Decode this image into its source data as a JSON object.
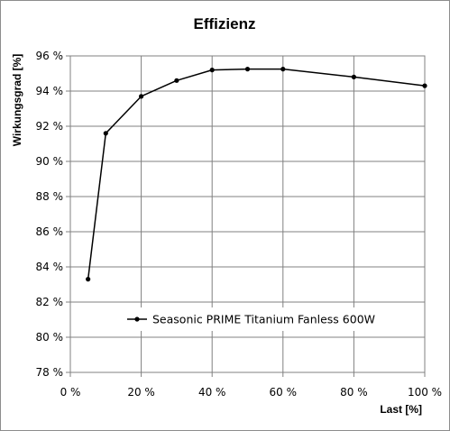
{
  "chart_data": {
    "type": "line",
    "title": "Effizienz",
    "xlabel": "Last [%]",
    "ylabel": "Wirkungsgrad [%]",
    "xlim": [
      0,
      100
    ],
    "ylim": [
      78,
      96
    ],
    "x_ticks": [
      "0 %",
      "20 %",
      "40 %",
      "60 %",
      "80 %",
      "100 %"
    ],
    "y_ticks": [
      "78 %",
      "80 %",
      "82 %",
      "84 %",
      "86 %",
      "88 %",
      "90 %",
      "92 %",
      "94 %",
      "96 %"
    ],
    "grid": true,
    "legend_position": "inside lower-right",
    "series": [
      {
        "name": "Seasonic PRIME Titanium Fanless 600W",
        "color": "#000000",
        "x": [
          5,
          10,
          20,
          30,
          40,
          50,
          60,
          80,
          100
        ],
        "y": [
          83.3,
          91.6,
          93.7,
          94.6,
          95.2,
          95.25,
          95.25,
          94.8,
          94.3
        ]
      }
    ]
  }
}
